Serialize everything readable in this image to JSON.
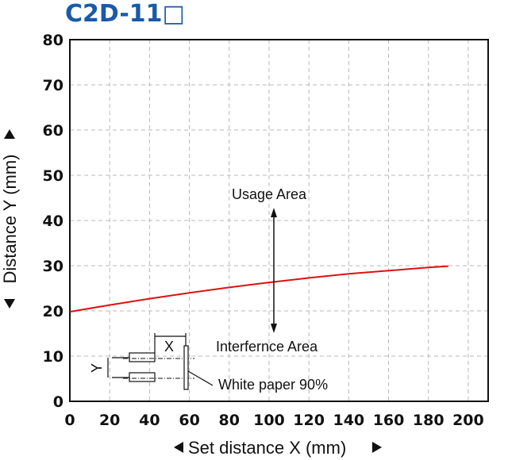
{
  "title": "C2D-11□",
  "chart_data": {
    "type": "line",
    "title": "C2D-11□",
    "xlabel": "Set distance X (mm)",
    "ylabel": "Distance Y (mm)",
    "xlim": [
      0,
      210
    ],
    "ylim": [
      0,
      80
    ],
    "x_ticks": [
      0,
      20,
      40,
      60,
      80,
      100,
      120,
      140,
      160,
      180,
      200
    ],
    "y_ticks": [
      0,
      10,
      20,
      30,
      40,
      50,
      60,
      70,
      80
    ],
    "grid": true,
    "series": [
      {
        "color": "#dd1111",
        "x": [
          0,
          20,
          40,
          60,
          80,
          100,
          120,
          140,
          160,
          180,
          190
        ],
        "y": [
          19.8,
          21.3,
          22.7,
          24.0,
          25.2,
          26.3,
          27.3,
          28.2,
          28.9,
          29.6,
          29.9
        ]
      }
    ],
    "annotations": {
      "usage_area": "Usage Area",
      "interference_area": "Interfernce Area",
      "white_paper": "White paper 90%",
      "x_marker": "X",
      "y_marker": "Y"
    }
  }
}
